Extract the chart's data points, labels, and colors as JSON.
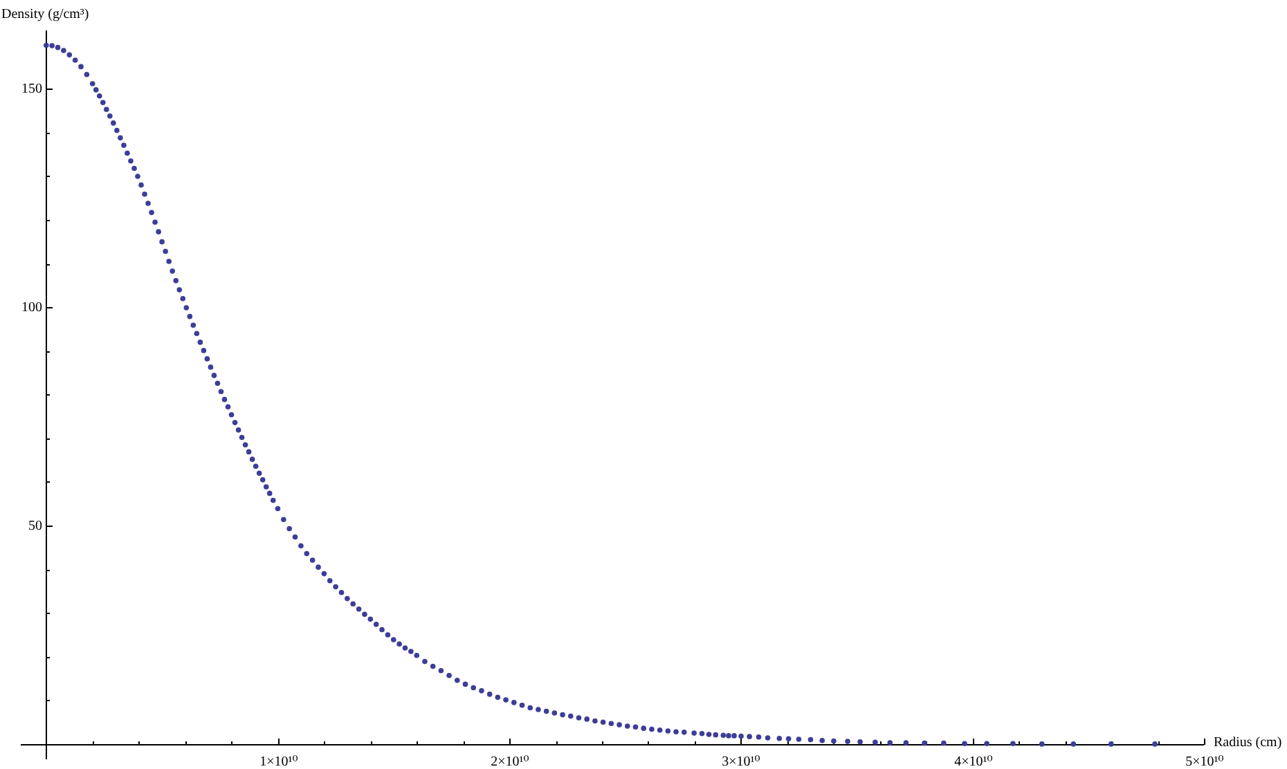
{
  "chart_data": {
    "type": "scatter",
    "xlabel": "Radius (cm)",
    "ylabel": "Density (g/cm³)",
    "color": "#3d3d99",
    "marker": "circle",
    "xlim": [
      -1100000000.0,
      50000000000.0
    ],
    "ylim": [
      -3.5,
      163.4
    ],
    "xticks": [
      {
        "value": 2000000000.0,
        "label": null
      },
      {
        "value": 4000000000.0,
        "label": null
      },
      {
        "value": 6000000000.0,
        "label": null
      },
      {
        "value": 8000000000.0,
        "label": null
      },
      {
        "value": 10000000000.0,
        "label": "1×10¹⁰"
      },
      {
        "value": 12000000000.0,
        "label": null
      },
      {
        "value": 14000000000.0,
        "label": null
      },
      {
        "value": 16000000000.0,
        "label": null
      },
      {
        "value": 18000000000.0,
        "label": null
      },
      {
        "value": 20000000000.0,
        "label": "2×10¹⁰"
      },
      {
        "value": 22000000000.0,
        "label": null
      },
      {
        "value": 24000000000.0,
        "label": null
      },
      {
        "value": 26000000000.0,
        "label": null
      },
      {
        "value": 28000000000.0,
        "label": null
      },
      {
        "value": 30000000000.0,
        "label": "3×10¹⁰"
      },
      {
        "value": 32000000000.0,
        "label": null
      },
      {
        "value": 34000000000.0,
        "label": null
      },
      {
        "value": 36000000000.0,
        "label": null
      },
      {
        "value": 38000000000.0,
        "label": null
      },
      {
        "value": 40000000000.0,
        "label": "4×10¹⁰"
      },
      {
        "value": 42000000000.0,
        "label": null
      },
      {
        "value": 44000000000.0,
        "label": null
      },
      {
        "value": 46000000000.0,
        "label": null
      },
      {
        "value": 48000000000.0,
        "label": null
      },
      {
        "value": 50000000000.0,
        "label": "5×10¹⁰"
      }
    ],
    "yticks": [
      {
        "value": 10,
        "label": null
      },
      {
        "value": 20,
        "label": null
      },
      {
        "value": 30,
        "label": null
      },
      {
        "value": 40,
        "label": null
      },
      50,
      {
        "value": 60,
        "label": null
      },
      {
        "value": 70,
        "label": null
      },
      {
        "value": 80,
        "label": null
      },
      {
        "value": 90,
        "label": null
      },
      100,
      {
        "value": 110,
        "label": null
      },
      {
        "value": 120,
        "label": null
      },
      {
        "value": 130,
        "label": null
      },
      {
        "value": 140,
        "label": null
      },
      150
    ],
    "x": [
      0,
      250000000.0,
      500000000.0,
      750000000.0,
      1000000000.0,
      1250000000.0,
      1500000000.0,
      1750000000.0,
      2000000000.0,
      2150000000.0,
      2300000000.0,
      2450000000.0,
      2600000000.0,
      2750000000.0,
      2900000000.0,
      3050000000.0,
      3200000000.0,
      3350000000.0,
      3500000000.0,
      3650000000.0,
      3800000000.0,
      3950000000.0,
      4100000000.0,
      4250000000.0,
      4400000000.0,
      4550000000.0,
      4700000000.0,
      4850000000.0,
      5000000000.0,
      5150000000.0,
      5300000000.0,
      5450000000.0,
      5600000000.0,
      5750000000.0,
      5900000000.0,
      6050000000.0,
      6200000000.0,
      6350000000.0,
      6500000000.0,
      6650000000.0,
      6800000000.0,
      6950000000.0,
      7100000000.0,
      7250000000.0,
      7400000000.0,
      7550000000.0,
      7700000000.0,
      7850000000.0,
      8000000000.0,
      8150000000.0,
      8300000000.0,
      8450000000.0,
      8600000000.0,
      8750000000.0,
      8900000000.0,
      9050000000.0,
      9200000000.0,
      9350000000.0,
      9500000000.0,
      9650000000.0,
      9800000000.0,
      10000000000.0,
      10250000000.0,
      10500000000.0,
      10750000000.0,
      11000000000.0,
      11250000000.0,
      11500000000.0,
      11750000000.0,
      12000000000.0,
      12250000000.0,
      12500000000.0,
      12750000000.0,
      13000000000.0,
      13250000000.0,
      13500000000.0,
      13750000000.0,
      14000000000.0,
      14250000000.0,
      14500000000.0,
      14750000000.0,
      15000000000.0,
      15250000000.0,
      15500000000.0,
      15750000000.0,
      16000000000.0,
      16350000000.0,
      16700000000.0,
      17050000000.0,
      17400000000.0,
      17750000000.0,
      18100000000.0,
      18450000000.0,
      18800000000.0,
      19150000000.0,
      19500000000.0,
      19850000000.0,
      20200000000.0,
      20550000000.0,
      20900000000.0,
      21250000000.0,
      21600000000.0,
      21950000000.0,
      22300000000.0,
      22650000000.0,
      23000000000.0,
      23350000000.0,
      23700000000.0,
      24050000000.0,
      24400000000.0,
      24750000000.0,
      25100000000.0,
      25450000000.0,
      25800000000.0,
      26150000000.0,
      26500000000.0,
      26850000000.0,
      27200000000.0,
      27550000000.0,
      27980000000.0,
      28320000000.0,
      28620000000.0,
      28910000000.0,
      29240000000.0,
      29470000000.0,
      29710000000.0,
      30010000000.0,
      30370000000.0,
      30770000000.0,
      31160000000.0,
      31660000000.0,
      32060000000.0,
      32500000000.0,
      33010000000.0,
      33510000000.0,
      34010000000.0,
      34610000000.0,
      35150000000.0,
      35800000000.0,
      36440000000.0,
      37130000000.0,
      37930000000.0,
      38760000000.0,
      39660000000.0,
      40620000000.0,
      41750000000.0,
      43000000000.0,
      44360000000.0,
      45990000000.0,
      47880000000.0
    ],
    "values": [
      160.0,
      159.9,
      159.5,
      158.8,
      157.8,
      156.6,
      155.1,
      153.3,
      151.2,
      149.8,
      148.4,
      146.9,
      145.3,
      143.8,
      142.2,
      140.5,
      138.8,
      137.1,
      135.3,
      133.5,
      131.8,
      130.0,
      128.0,
      125.9,
      123.8,
      121.7,
      119.5,
      117.3,
      115.0,
      112.8,
      110.5,
      108.3,
      106.1,
      104.0,
      102.0,
      99.9,
      97.9,
      95.9,
      94.0,
      92.0,
      90.1,
      88.2,
      86.3,
      84.4,
      82.6,
      80.7,
      78.9,
      77.2,
      75.4,
      73.6,
      71.9,
      70.2,
      68.5,
      66.9,
      65.2,
      63.6,
      62.0,
      60.5,
      58.9,
      57.4,
      55.8,
      53.9,
      51.4,
      49.3,
      47.4,
      45.4,
      43.6,
      42.1,
      40.5,
      39.0,
      37.4,
      36.0,
      34.7,
      33.3,
      32.1,
      30.9,
      29.7,
      28.6,
      27.4,
      26.2,
      25.0,
      23.9,
      22.9,
      22.0,
      21.2,
      20.3,
      18.9,
      17.8,
      16.8,
      15.7,
      14.6,
      13.7,
      12.9,
      12.2,
      11.4,
      10.7,
      10.1,
      9.5,
      8.9,
      8.3,
      7.9,
      7.5,
      7.1,
      6.7,
      6.4,
      6.0,
      5.7,
      5.3,
      5.0,
      4.7,
      4.4,
      4.1,
      3.9,
      3.6,
      3.4,
      3.2,
      3.0,
      2.8,
      2.7,
      2.5,
      2.4,
      2.2,
      2.1,
      2.0,
      1.9,
      1.9,
      1.8,
      1.7,
      1.6,
      1.4,
      1.3,
      1.2,
      1.1,
      1.0,
      0.8,
      0.7,
      0.6,
      0.5,
      0.4,
      0.3,
      0.3,
      0.2,
      0.2,
      0.1,
      0.1,
      0.1,
      0.0,
      0.0,
      0.0,
      0.0
    ]
  }
}
